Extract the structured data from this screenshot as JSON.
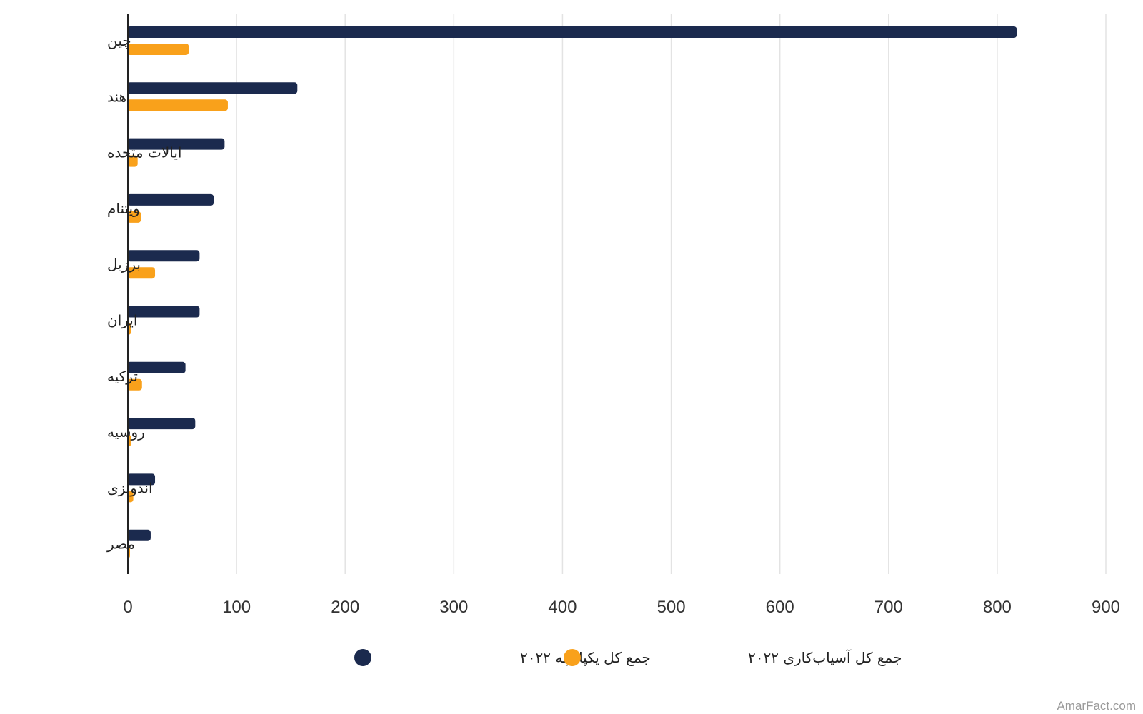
{
  "chart_data": {
    "type": "bar",
    "orientation": "horizontal",
    "categories": [
      "چین",
      "هند",
      "ایالات متحده",
      "ویتنام",
      "برزیل",
      "ایران",
      "ترکیه",
      "روسیه",
      "اندونزی",
      "مصر"
    ],
    "series": [
      {
        "name": "جمع کل یکپارچه ۲۰۲۲",
        "color": "#1b2a4e",
        "values": [
          818,
          156,
          89,
          79,
          66,
          66,
          53,
          62,
          25,
          21
        ]
      },
      {
        "name": "جمع کل آسیاب‌کاری ۲۰۲۲",
        "color": "#f9a11b",
        "values": [
          56,
          92,
          9,
          12,
          25,
          3,
          13,
          3,
          5,
          1
        ]
      }
    ],
    "xlim": [
      0,
      900
    ],
    "xticks": [
      "0",
      "100",
      "200",
      "300",
      "400",
      "500",
      "600",
      "700",
      "800",
      "900"
    ],
    "xlabel": "",
    "ylabel": "",
    "title": "",
    "grid": "vertical",
    "legend_position": "bottom-center"
  },
  "watermark": "AmarFact.com",
  "colors": {
    "grid": "#e3e3e3",
    "axis": "#222222",
    "background": "#ffffff"
  }
}
